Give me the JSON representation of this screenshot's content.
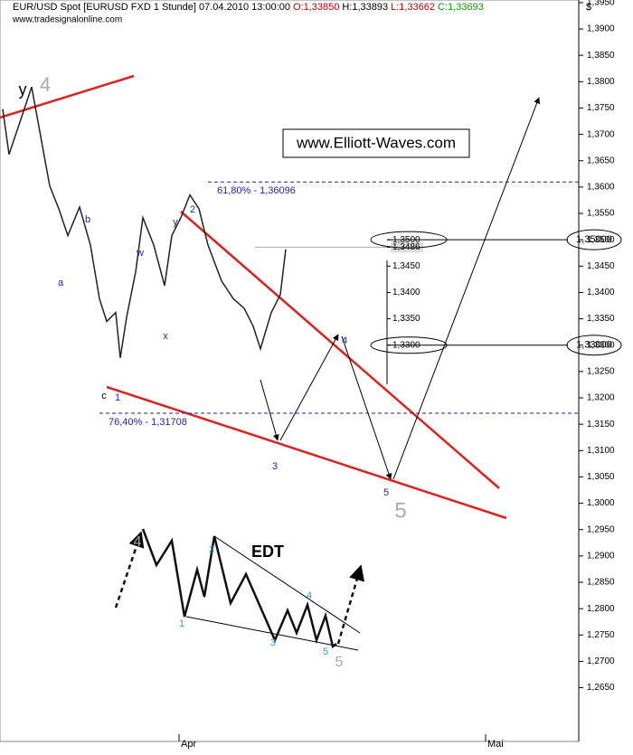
{
  "chart_data": {
    "type": "line",
    "title": "EUR/USD Spot [EURUSD FXD  1 Stunde] 07.04.2010 13:00:00",
    "quote": {
      "open": "O:1,33850",
      "high": "H:1,33893",
      "low": "L:1,33662",
      "close": "C:1,33693"
    },
    "source": "www.tradesignalonline.com",
    "unit": "$",
    "watermark": "www.Elliott-Waves.com",
    "x": [
      3,
      10,
      20,
      35,
      45,
      55,
      65,
      75,
      88,
      100,
      110,
      118,
      128,
      133,
      140,
      150,
      158,
      170,
      182,
      190,
      200,
      210,
      220,
      230,
      245,
      258,
      270,
      280,
      288,
      300,
      310,
      316
    ],
    "series": [
      {
        "name": "EUR/USD",
        "color": "#222222",
        "values": [
          1.3748,
          1.3662,
          1.3713,
          1.379,
          1.3696,
          1.3602,
          1.3559,
          1.3508,
          1.3562,
          1.349,
          1.3388,
          1.3345,
          1.3362,
          1.3276,
          1.3353,
          1.3439,
          1.3542,
          1.349,
          1.3413,
          1.3508,
          1.3542,
          1.3585,
          1.3559,
          1.349,
          1.3422,
          1.3388,
          1.337,
          1.3336,
          1.3293,
          1.3362,
          1.3396,
          1.3482
        ]
      }
    ],
    "xlim": [
      0,
      640
    ],
    "xticks": [
      {
        "value": 198,
        "label": "Apr"
      },
      {
        "value": 537,
        "label": "Mai"
      }
    ],
    "ylim": [
      1.2548,
      1.3955
    ],
    "yticks": [
      {
        "value": 1.265,
        "label": "1,2650"
      },
      {
        "value": 1.27,
        "label": "1,2700"
      },
      {
        "value": 1.275,
        "label": "1,2750"
      },
      {
        "value": 1.28,
        "label": "1,2800"
      },
      {
        "value": 1.285,
        "label": "1,2850"
      },
      {
        "value": 1.29,
        "label": "1,2900"
      },
      {
        "value": 1.295,
        "label": "1,2950"
      },
      {
        "value": 1.3,
        "label": "1,3000"
      },
      {
        "value": 1.305,
        "label": "1,3050"
      },
      {
        "value": 1.31,
        "label": "1,3100"
      },
      {
        "value": 1.315,
        "label": "1,3150"
      },
      {
        "value": 1.32,
        "label": "1,3200"
      },
      {
        "value": 1.325,
        "label": "1,3250"
      },
      {
        "value": 1.33,
        "label": "1,3300"
      },
      {
        "value": 1.335,
        "label": "1,3350"
      },
      {
        "value": 1.34,
        "label": "1,3400"
      },
      {
        "value": 1.345,
        "label": "1,3450"
      },
      {
        "value": 1.35,
        "label": "1,3500"
      },
      {
        "value": 1.355,
        "label": "1,3550"
      },
      {
        "value": 1.36,
        "label": "1,3600"
      },
      {
        "value": 1.365,
        "label": "1,3650"
      },
      {
        "value": 1.37,
        "label": "1,3700"
      },
      {
        "value": 1.375,
        "label": "1,3750"
      },
      {
        "value": 1.38,
        "label": "1,3800"
      },
      {
        "value": 1.385,
        "label": "1,3850"
      },
      {
        "value": 1.39,
        "label": "1,3900"
      },
      {
        "value": 1.395,
        "label": "1,3950"
      }
    ],
    "fib_levels": [
      {
        "value": 1.36096,
        "label": "61,80% - 1,36096"
      },
      {
        "value": 1.31708,
        "label": "76,40% - 1,31708"
      }
    ],
    "targets": [
      {
        "value": 1.35,
        "label": "1,35000"
      },
      {
        "value": 1.33,
        "label": "1,33000"
      }
    ],
    "mini_axis_ticks": [
      {
        "value": 1.35,
        "label": "1,3500"
      },
      {
        "value": 1.3486,
        "label": "1,3486"
      },
      {
        "value": 1.345,
        "label": "1,3450"
      },
      {
        "value": 1.34,
        "label": "1,3400"
      },
      {
        "value": 1.335,
        "label": "1,3350"
      },
      {
        "value": 1.33,
        "label": "1,3300"
      }
    ],
    "wave_labels": [
      "y",
      "4",
      "a",
      "b",
      "c",
      "1",
      "w",
      "x",
      "y",
      "2",
      "3",
      "4",
      "5",
      "5"
    ],
    "edt_labels": [
      "4",
      "2",
      "EDT",
      "1",
      "3",
      "4",
      "5",
      "5"
    ]
  }
}
